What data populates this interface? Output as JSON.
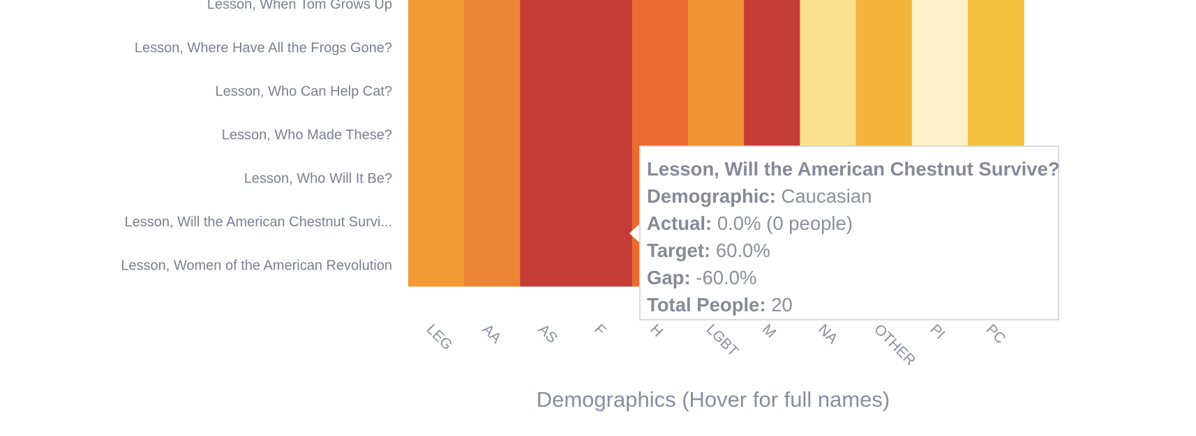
{
  "chart_data": {
    "type": "heatmap",
    "xlabel": "Demographics (Hover for full names)",
    "x_categories": [
      "LEG",
      "AA",
      "AS",
      "F",
      "H",
      "LGBT",
      "M",
      "NA",
      "OTHER",
      "PI",
      "PC"
    ],
    "y_categories": [
      "Lesson, When Tom Grows Up",
      "Lesson, Where Have All the Frogs Gone?",
      "Lesson, Who Can Help Cat?",
      "Lesson, Who Made These?",
      "Lesson, Who Will It Be?",
      "Lesson, Will the American Chestnut Survi...",
      "Lesson, Women of the American Revolution"
    ],
    "column_colors": [
      "#f29a34",
      "#ec8435",
      "#c43d36",
      "#c43d36",
      "#ea6c33",
      "#ef9435",
      "#c43d36",
      "#f8e08c",
      "#f3b43b",
      "#fcf1c9",
      "#f5c240"
    ],
    "tooltip": {
      "title": "Lesson, Will the American Chestnut Survive?",
      "demographic_label": "Demographic:",
      "demographic_value": "Caucasian",
      "actual_label": "Actual:",
      "actual_value": "0.0% (0 people)",
      "target_label": "Target:",
      "target_value": "60.0%",
      "gap_label": "Gap:",
      "gap_value": "-60.0%",
      "total_label": "Total People:",
      "total_value": "20"
    }
  }
}
